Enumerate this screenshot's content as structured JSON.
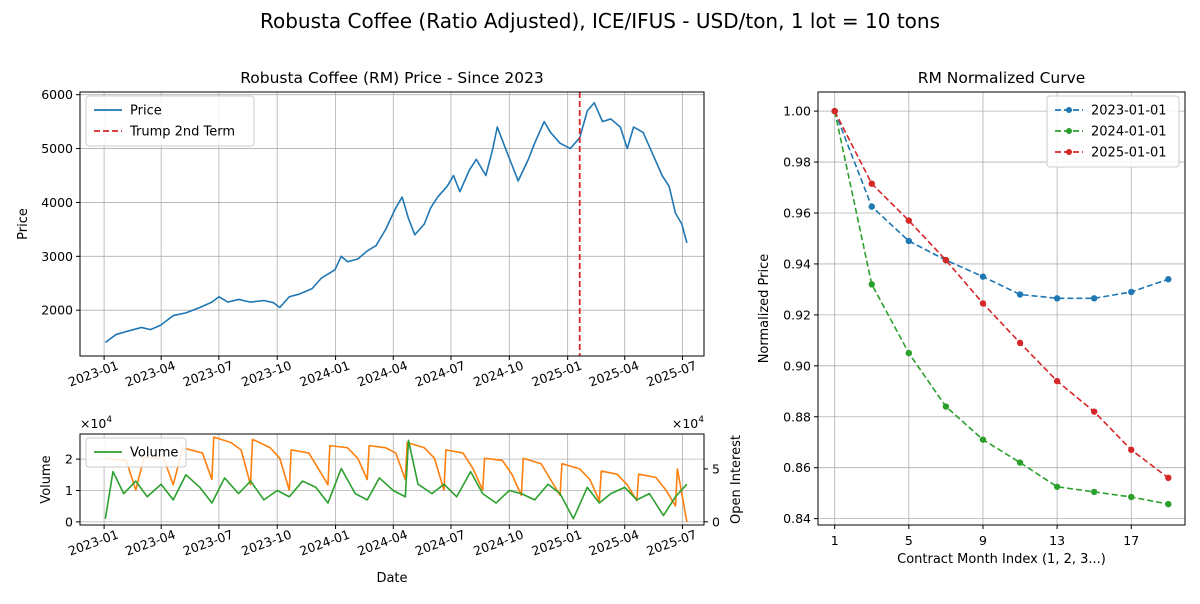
{
  "figure": {
    "suptitle": "Robusta Coffee (Ratio Adjusted), ICE/IFUS - USD/ton, 1 lot = 10 tons"
  },
  "chart_data": [
    {
      "id": "price",
      "type": "line",
      "title": "Robusta Coffee (RM) Price - Since 2023",
      "xlabel": "",
      "ylabel": "Price",
      "xlim": [
        "2022-11-24",
        "2025-08-04"
      ],
      "ylim": [
        1150,
        6050
      ],
      "xticks": [
        "2023-01",
        "2023-04",
        "2023-07",
        "2023-10",
        "2024-01",
        "2024-04",
        "2024-07",
        "2024-10",
        "2025-01",
        "2025-04",
        "2025-07"
      ],
      "yticks": [
        2000,
        3000,
        4000,
        5000,
        6000
      ],
      "grid": true,
      "legend": "upper-left",
      "series": [
        {
          "name": "Price",
          "color": "#1f77b4",
          "x": [
            "2023-01-03",
            "2023-01-20",
            "2023-02-10",
            "2023-03-01",
            "2023-03-15",
            "2023-03-31",
            "2023-04-20",
            "2023-05-10",
            "2023-06-01",
            "2023-06-20",
            "2023-07-01",
            "2023-07-15",
            "2023-08-01",
            "2023-08-20",
            "2023-09-10",
            "2023-09-25",
            "2023-10-05",
            "2023-10-20",
            "2023-11-05",
            "2023-11-25",
            "2023-12-10",
            "2023-12-31",
            "2024-01-10",
            "2024-01-20",
            "2024-02-05",
            "2024-02-20",
            "2024-03-05",
            "2024-03-20",
            "2024-04-05",
            "2024-04-15",
            "2024-04-25",
            "2024-05-05",
            "2024-05-20",
            "2024-05-30",
            "2024-06-10",
            "2024-06-25",
            "2024-07-05",
            "2024-07-15",
            "2024-07-30",
            "2024-08-10",
            "2024-08-25",
            "2024-09-05",
            "2024-09-12",
            "2024-09-25",
            "2024-10-05",
            "2024-10-15",
            "2024-10-31",
            "2024-11-10",
            "2024-11-25",
            "2024-12-05",
            "2024-12-20",
            "2025-01-05",
            "2025-01-20",
            "2025-02-01",
            "2025-02-12",
            "2025-02-25",
            "2025-03-10",
            "2025-03-25",
            "2025-04-05",
            "2025-04-15",
            "2025-04-30",
            "2025-05-15",
            "2025-05-30",
            "2025-06-10",
            "2025-06-20",
            "2025-06-30",
            "2025-07-08"
          ],
          "values": [
            1400,
            1550,
            1620,
            1680,
            1640,
            1720,
            1900,
            1950,
            2050,
            2150,
            2250,
            2150,
            2200,
            2150,
            2180,
            2140,
            2050,
            2250,
            2300,
            2400,
            2600,
            2750,
            3000,
            2900,
            2950,
            3100,
            3200,
            3500,
            3900,
            4100,
            3700,
            3400,
            3600,
            3900,
            4100,
            4300,
            4500,
            4200,
            4600,
            4800,
            4500,
            5000,
            5400,
            5000,
            4700,
            4400,
            4800,
            5100,
            5500,
            5300,
            5100,
            5000,
            5200,
            5700,
            5850,
            5500,
            5550,
            5400,
            5000,
            5400,
            5300,
            4900,
            4500,
            4300,
            3800,
            3600,
            3250
          ]
        },
        {
          "name": "Trump 2nd Term",
          "color": "#d62728",
          "style": "dashed-vertical",
          "x": "2025-01-20"
        }
      ]
    },
    {
      "id": "volume",
      "type": "line",
      "title": "",
      "xlabel": "Date",
      "ylabel": "Volume",
      "ylabel_right": "Open Interest",
      "offset_text_left": "×10^4",
      "offset_text_right": "×10^4",
      "xlim": [
        "2022-11-24",
        "2025-08-04"
      ],
      "ylim": [
        -0.1,
        2.8
      ],
      "ylim_right": [
        -0.3,
        8.3
      ],
      "xticks": [
        "2023-01",
        "2023-04",
        "2023-07",
        "2023-10",
        "2024-01",
        "2024-04",
        "2024-07",
        "2024-10",
        "2025-01",
        "2025-04",
        "2025-07"
      ],
      "yticks": [
        0,
        1,
        2
      ],
      "yticks_right": [
        0,
        5
      ],
      "grid": true,
      "legend": "upper-left",
      "series": [
        {
          "name": "Volume",
          "color": "#2ca02c",
          "x": [
            "2023-01-03",
            "2023-01-15",
            "2023-02-01",
            "2023-02-20",
            "2023-03-10",
            "2023-04-01",
            "2023-04-20",
            "2023-05-10",
            "2023-06-01",
            "2023-06-20",
            "2023-07-10",
            "2023-08-01",
            "2023-08-20",
            "2023-09-10",
            "2023-10-01",
            "2023-10-20",
            "2023-11-10",
            "2023-12-01",
            "2023-12-20",
            "2024-01-10",
            "2024-02-01",
            "2024-02-20",
            "2024-03-10",
            "2024-04-01",
            "2024-04-20",
            "2024-04-25",
            "2024-05-10",
            "2024-06-01",
            "2024-06-20",
            "2024-07-10",
            "2024-08-01",
            "2024-08-20",
            "2024-09-10",
            "2024-10-01",
            "2024-10-20",
            "2024-11-10",
            "2024-12-01",
            "2024-12-20",
            "2025-01-10",
            "2025-02-01",
            "2025-02-20",
            "2025-03-10",
            "2025-04-01",
            "2025-04-20",
            "2025-05-10",
            "2025-06-01",
            "2025-06-20",
            "2025-07-08"
          ],
          "values": [
            0.1,
            1.6,
            0.9,
            1.3,
            0.8,
            1.2,
            0.7,
            1.5,
            1.1,
            0.6,
            1.4,
            0.9,
            1.3,
            0.7,
            1.0,
            0.8,
            1.3,
            1.1,
            0.6,
            1.7,
            0.9,
            0.7,
            1.4,
            1.0,
            0.8,
            2.6,
            1.2,
            0.9,
            1.2,
            0.8,
            1.6,
            0.9,
            0.6,
            1.0,
            0.9,
            0.7,
            1.2,
            0.9,
            0.1,
            1.1,
            0.6,
            0.9,
            1.1,
            0.7,
            0.9,
            0.2,
            0.8,
            1.2
          ]
        },
        {
          "name": "Open Interest",
          "color": "#ff7f0e",
          "x": [
            "2023-01-03",
            "2023-02-05",
            "2023-02-20",
            "2023-03-05",
            "2023-04-05",
            "2023-04-20",
            "2023-05-05",
            "2023-06-05",
            "2023-06-20",
            "2023-06-23",
            "2023-07-20",
            "2023-08-05",
            "2023-08-20",
            "2023-08-23",
            "2023-09-20",
            "2023-10-05",
            "2023-10-20",
            "2023-10-23",
            "2023-11-20",
            "2023-12-05",
            "2023-12-20",
            "2023-12-23",
            "2024-01-20",
            "2024-02-05",
            "2024-02-20",
            "2024-02-23",
            "2024-03-20",
            "2024-04-05",
            "2024-04-20",
            "2024-04-23",
            "2024-05-20",
            "2024-06-05",
            "2024-06-20",
            "2024-06-23",
            "2024-07-20",
            "2024-08-05",
            "2024-08-20",
            "2024-08-23",
            "2024-09-20",
            "2024-10-05",
            "2024-10-20",
            "2024-10-23",
            "2024-11-20",
            "2024-12-05",
            "2024-12-20",
            "2024-12-23",
            "2025-01-20",
            "2025-02-05",
            "2025-02-20",
            "2025-02-23",
            "2025-03-20",
            "2025-04-05",
            "2025-04-20",
            "2025-04-23",
            "2025-05-20",
            "2025-06-05",
            "2025-06-20",
            "2025-06-23",
            "2025-07-08"
          ],
          "values": [
            6.0,
            5.8,
            3.0,
            6.1,
            6.0,
            3.5,
            7.0,
            6.5,
            4.0,
            8.0,
            7.5,
            6.8,
            3.5,
            7.8,
            7.0,
            6.0,
            3.0,
            6.8,
            6.5,
            5.0,
            3.5,
            7.2,
            7.0,
            6.0,
            4.0,
            7.2,
            7.0,
            6.5,
            4.0,
            7.5,
            7.0,
            6.0,
            3.0,
            6.8,
            6.5,
            5.0,
            3.0,
            6.0,
            5.8,
            4.5,
            2.5,
            6.0,
            5.5,
            4.0,
            2.5,
            5.5,
            5.0,
            4.0,
            2.0,
            4.8,
            4.5,
            3.5,
            2.0,
            4.5,
            4.2,
            3.0,
            1.5,
            5.0,
            0.0
          ]
        }
      ]
    },
    {
      "id": "curve",
      "type": "line",
      "title": "RM Normalized Curve",
      "xlabel": "Contract Month Index (1, 2, 3...)",
      "ylabel": "Normalized Price",
      "xlim": [
        0.1,
        19.9
      ],
      "ylim": [
        0.8375,
        1.0075
      ],
      "xticks": [
        1,
        5,
        9,
        13,
        17
      ],
      "yticks": [
        0.84,
        0.86,
        0.88,
        0.9,
        0.92,
        0.94,
        0.96,
        0.98,
        1.0
      ],
      "grid": true,
      "legend": "upper-right",
      "x": [
        1,
        3,
        5,
        7,
        9,
        11,
        13,
        15,
        17,
        19
      ],
      "series": [
        {
          "name": "2023-01-01",
          "color": "#1f77b4",
          "values": [
            1.0,
            0.9625,
            0.949,
            0.9415,
            0.935,
            0.928,
            0.9265,
            0.9265,
            0.929,
            0.934
          ]
        },
        {
          "name": "2024-01-01",
          "color": "#2ca02c",
          "values": [
            1.0,
            0.932,
            0.905,
            0.884,
            0.871,
            0.862,
            0.8525,
            0.8505,
            0.8485,
            0.8457
          ]
        },
        {
          "name": "2025-01-01",
          "color": "#d62728",
          "values": [
            1.0,
            0.9715,
            0.957,
            0.9415,
            0.9245,
            0.909,
            0.894,
            0.882,
            0.867,
            0.856
          ]
        }
      ]
    }
  ]
}
